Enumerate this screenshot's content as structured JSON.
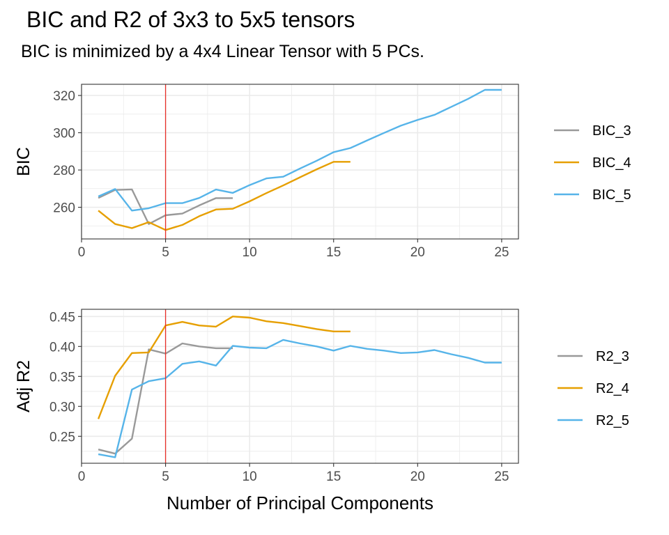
{
  "title": "BIC and R2 of 3x3 to 5x5 tensors",
  "subtitle": "BIC is minimized by a 4x4 Linear Tensor with 5 PCs.",
  "colors": {
    "series_3": "#999999",
    "series_4": "#E69F00",
    "series_5": "#56B4E9",
    "vline": "#E8302A",
    "grid": "#EBEBEB",
    "border": "#333333"
  },
  "chart_data": [
    {
      "type": "line",
      "ylabel": "BIC",
      "xlim": [
        0,
        26
      ],
      "ylim": [
        243,
        326
      ],
      "x_ticks": [
        0,
        5,
        10,
        15,
        20,
        25
      ],
      "y_ticks": [
        260,
        280,
        300,
        320
      ],
      "grid": true,
      "legend_position": "right",
      "vline_x": 5,
      "series": [
        {
          "name": "BIC_3",
          "color_key": "series_3",
          "x": [
            1,
            2,
            3,
            4,
            5,
            6,
            7,
            8,
            9
          ],
          "y": [
            265,
            269.3,
            269.6,
            251,
            255.7,
            256.6,
            261,
            264.9,
            264.9
          ]
        },
        {
          "name": "BIC_4",
          "color_key": "series_4",
          "x": [
            1,
            2,
            3,
            4,
            5,
            6,
            7,
            8,
            9,
            10,
            11,
            12,
            13,
            14,
            15,
            16
          ],
          "y": [
            258.2,
            251,
            248.8,
            252,
            247.8,
            250.5,
            255.2,
            258.8,
            259.2,
            263.2,
            267.6,
            271.7,
            276.1,
            280.4,
            284.4,
            284.4
          ]
        },
        {
          "name": "BIC_5",
          "color_key": "series_5",
          "x": [
            1,
            2,
            3,
            4,
            5,
            6,
            7,
            8,
            9,
            10,
            11,
            12,
            13,
            14,
            15,
            16,
            17,
            18,
            19,
            20,
            21,
            22,
            23,
            24,
            25
          ],
          "y": [
            265.8,
            269.8,
            258.2,
            259.5,
            262.2,
            262.2,
            265,
            269.5,
            267.7,
            271.9,
            275.5,
            276.4,
            280.8,
            285,
            289.6,
            291.8,
            295.9,
            299.9,
            303.8,
            306.9,
            309.6,
            313.9,
            318.2,
            323,
            323
          ]
        }
      ]
    },
    {
      "type": "line",
      "xlabel": "Number of Principal Components",
      "ylabel": "Adj R2",
      "xlim": [
        0,
        26
      ],
      "ylim": [
        0.205,
        0.462
      ],
      "x_ticks": [
        0,
        5,
        10,
        15,
        20,
        25
      ],
      "y_ticks": [
        0.25,
        0.3,
        0.35,
        0.4,
        0.45
      ],
      "y_tick_labels": [
        "0.25",
        "0.30",
        "0.35",
        "0.40",
        "0.45"
      ],
      "grid": true,
      "legend_position": "right",
      "vline_x": 5,
      "series": [
        {
          "name": "R2_3",
          "color_key": "series_3",
          "x": [
            1,
            2,
            3,
            4,
            5,
            6,
            7,
            8,
            9
          ],
          "y": [
            0.228,
            0.221,
            0.246,
            0.395,
            0.388,
            0.405,
            0.4,
            0.397,
            0.397
          ]
        },
        {
          "name": "R2_4",
          "color_key": "series_4",
          "x": [
            1,
            2,
            3,
            4,
            5,
            6,
            7,
            8,
            9,
            10,
            11,
            12,
            13,
            14,
            15,
            16
          ],
          "y": [
            0.279,
            0.351,
            0.389,
            0.39,
            0.435,
            0.441,
            0.435,
            0.433,
            0.45,
            0.448,
            0.442,
            0.439,
            0.434,
            0.429,
            0.425,
            0.425
          ]
        },
        {
          "name": "R2_5",
          "color_key": "series_5",
          "x": [
            1,
            2,
            3,
            4,
            5,
            6,
            7,
            8,
            9,
            10,
            11,
            12,
            13,
            14,
            15,
            16,
            17,
            18,
            19,
            20,
            21,
            22,
            23,
            24,
            25
          ],
          "y": [
            0.22,
            0.215,
            0.328,
            0.342,
            0.347,
            0.371,
            0.375,
            0.368,
            0.401,
            0.398,
            0.397,
            0.411,
            0.405,
            0.4,
            0.393,
            0.401,
            0.396,
            0.393,
            0.389,
            0.39,
            0.394,
            0.387,
            0.381,
            0.373,
            0.373
          ]
        }
      ]
    }
  ]
}
